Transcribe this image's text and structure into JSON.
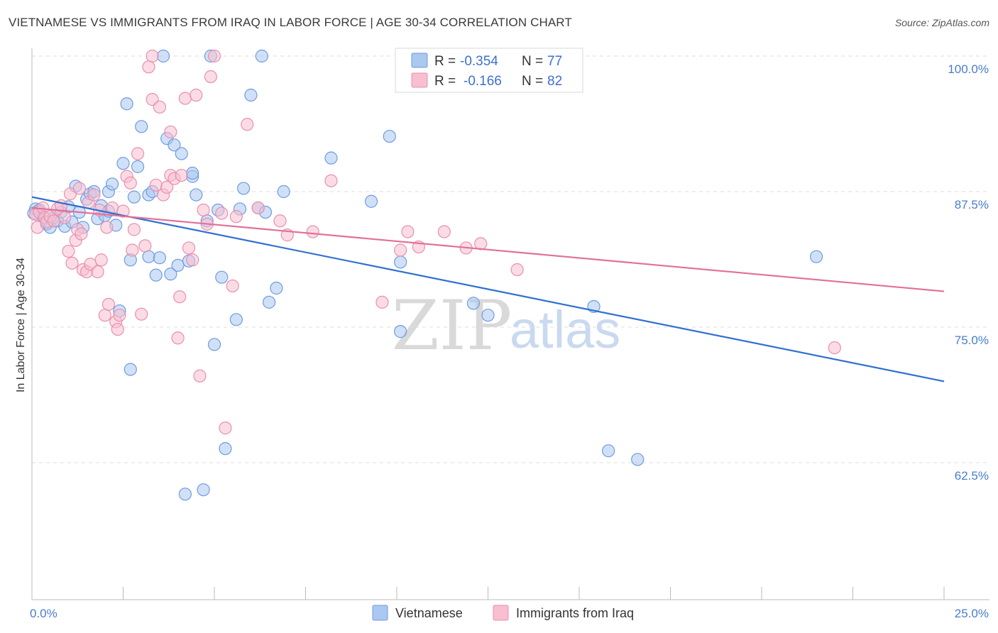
{
  "title": "VIETNAMESE VS IMMIGRANTS FROM IRAQ IN LABOR FORCE | AGE 30-34 CORRELATION CHART",
  "source": "Source: ZipAtlas.com",
  "watermark": {
    "zip": "ZIP",
    "atlas": "atlas"
  },
  "colors": {
    "blue_fill": "#aac8f0",
    "blue_stroke": "#6f9be0",
    "blue_line": "#2f6fd0",
    "pink_fill": "#f7bfd0",
    "pink_stroke": "#ea8fae",
    "pink_line": "#e0709a",
    "grid": "#dddddd",
    "tick_text": "#4a7ccc"
  },
  "legend": {
    "rows": [
      {
        "r_label": "R =",
        "r_value": "-0.354",
        "n_label": "N =",
        "n_value": "77"
      },
      {
        "r_label": "R =",
        "r_value": "-0.166",
        "n_label": "N =",
        "n_value": "82"
      }
    ]
  },
  "chart_data": {
    "type": "scatter",
    "title": "VIETNAMESE VS IMMIGRANTS FROM IRAQ IN LABOR FORCE | AGE 30-34 CORRELATION CHART",
    "xlabel": "",
    "ylabel": "In Labor Force | Age 30-34",
    "xlim": [
      0,
      25
    ],
    "ylim": [
      50,
      102
    ],
    "x_tick_labels": [
      {
        "value": 0,
        "label": "0.0%"
      },
      {
        "value": 25,
        "label": "25.0%"
      }
    ],
    "y_tick_labels": [
      {
        "value": 100,
        "label": "100.0%"
      },
      {
        "value": 87.5,
        "label": "87.5%"
      },
      {
        "value": 75,
        "label": "75.0%"
      },
      {
        "value": 62.5,
        "label": "62.5%"
      }
    ],
    "series": [
      {
        "name": "Vietnamese",
        "R": -0.354,
        "N": 77,
        "trend": [
          [
            0,
            87.0
          ],
          [
            25,
            70.0
          ]
        ],
        "points": [
          [
            0.1,
            85.9
          ],
          [
            0.2,
            85.8
          ],
          [
            0.3,
            85.2
          ],
          [
            0.4,
            84.5
          ],
          [
            0.5,
            84.2
          ],
          [
            0.6,
            85.1
          ],
          [
            0.7,
            84.8
          ],
          [
            0.8,
            85.6
          ],
          [
            0.9,
            84.3
          ],
          [
            1.0,
            86.1
          ],
          [
            1.1,
            84.7
          ],
          [
            1.2,
            88.0
          ],
          [
            1.3,
            85.6
          ],
          [
            1.4,
            84.2
          ],
          [
            1.5,
            86.8
          ],
          [
            1.6,
            87.3
          ],
          [
            1.7,
            87.5
          ],
          [
            1.8,
            85.0
          ],
          [
            1.9,
            86.2
          ],
          [
            2.0,
            85.3
          ],
          [
            2.1,
            85.7
          ],
          [
            2.1,
            87.5
          ],
          [
            2.2,
            88.2
          ],
          [
            2.3,
            84.4
          ],
          [
            2.4,
            76.5
          ],
          [
            2.5,
            90.1
          ],
          [
            2.6,
            95.6
          ],
          [
            2.7,
            81.2
          ],
          [
            2.7,
            71.1
          ],
          [
            2.8,
            87.0
          ],
          [
            2.9,
            89.8
          ],
          [
            3.0,
            93.5
          ],
          [
            3.2,
            87.2
          ],
          [
            3.2,
            81.5
          ],
          [
            3.3,
            87.5
          ],
          [
            3.4,
            79.8
          ],
          [
            3.5,
            81.4
          ],
          [
            3.6,
            100.0
          ],
          [
            3.7,
            92.4
          ],
          [
            3.8,
            79.9
          ],
          [
            3.9,
            91.8
          ],
          [
            4.0,
            80.7
          ],
          [
            4.1,
            91.0
          ],
          [
            4.2,
            59.6
          ],
          [
            4.3,
            81.1
          ],
          [
            4.4,
            88.9
          ],
          [
            4.4,
            89.2
          ],
          [
            4.5,
            87.2
          ],
          [
            4.7,
            60.0
          ],
          [
            4.8,
            84.8
          ],
          [
            4.9,
            100.0
          ],
          [
            5.0,
            73.4
          ],
          [
            5.1,
            85.8
          ],
          [
            5.2,
            79.6
          ],
          [
            5.3,
            63.8
          ],
          [
            5.6,
            75.7
          ],
          [
            5.7,
            85.9
          ],
          [
            5.8,
            87.8
          ],
          [
            6.0,
            96.4
          ],
          [
            6.2,
            86.0
          ],
          [
            6.3,
            100.0
          ],
          [
            6.4,
            85.6
          ],
          [
            6.5,
            77.3
          ],
          [
            6.7,
            78.6
          ],
          [
            6.9,
            87.5
          ],
          [
            8.2,
            90.6
          ],
          [
            9.3,
            86.6
          ],
          [
            9.8,
            92.6
          ],
          [
            10.1,
            74.6
          ],
          [
            10.1,
            81.0
          ],
          [
            12.1,
            77.2
          ],
          [
            12.5,
            76.1
          ],
          [
            15.4,
            76.9
          ],
          [
            15.8,
            63.6
          ],
          [
            16.6,
            62.8
          ],
          [
            21.5,
            81.5
          ],
          [
            0.05,
            85.5
          ]
        ]
      },
      {
        "name": "Immigrants from Iraq",
        "R": -0.166,
        "N": 82,
        "trend": [
          [
            0,
            86.0
          ],
          [
            25,
            78.3
          ]
        ],
        "points": [
          [
            0.1,
            85.4
          ],
          [
            0.15,
            84.2
          ],
          [
            0.2,
            85.6
          ],
          [
            0.3,
            86.0
          ],
          [
            0.35,
            85.1
          ],
          [
            0.4,
            84.7
          ],
          [
            0.5,
            85.2
          ],
          [
            0.6,
            84.8
          ],
          [
            0.7,
            85.9
          ],
          [
            0.8,
            86.2
          ],
          [
            0.9,
            85.1
          ],
          [
            1.0,
            82.0
          ],
          [
            1.05,
            87.3
          ],
          [
            1.1,
            80.9
          ],
          [
            1.2,
            83.0
          ],
          [
            1.25,
            84.0
          ],
          [
            1.3,
            87.8
          ],
          [
            1.35,
            83.6
          ],
          [
            1.4,
            80.3
          ],
          [
            1.5,
            80.1
          ],
          [
            1.55,
            86.5
          ],
          [
            1.6,
            80.8
          ],
          [
            1.7,
            87.2
          ],
          [
            1.8,
            80.1
          ],
          [
            1.85,
            85.8
          ],
          [
            1.9,
            81.2
          ],
          [
            2.0,
            76.1
          ],
          [
            2.05,
            84.2
          ],
          [
            2.1,
            77.1
          ],
          [
            2.2,
            86.0
          ],
          [
            2.3,
            75.5
          ],
          [
            2.35,
            74.8
          ],
          [
            2.4,
            76.1
          ],
          [
            2.5,
            85.7
          ],
          [
            2.6,
            88.9
          ],
          [
            2.7,
            88.3
          ],
          [
            2.75,
            82.1
          ],
          [
            2.8,
            84.0
          ],
          [
            2.9,
            91.0
          ],
          [
            3.0,
            76.2
          ],
          [
            3.1,
            82.5
          ],
          [
            3.2,
            99.0
          ],
          [
            3.3,
            100.0
          ],
          [
            3.3,
            96.0
          ],
          [
            3.4,
            88.1
          ],
          [
            3.5,
            95.3
          ],
          [
            3.6,
            87.2
          ],
          [
            3.7,
            87.9
          ],
          [
            3.8,
            93.0
          ],
          [
            3.8,
            89.0
          ],
          [
            3.9,
            88.7
          ],
          [
            4.0,
            74.0
          ],
          [
            4.05,
            77.8
          ],
          [
            4.1,
            89.0
          ],
          [
            4.2,
            96.1
          ],
          [
            4.3,
            82.3
          ],
          [
            4.4,
            81.2
          ],
          [
            4.5,
            96.4
          ],
          [
            4.6,
            70.5
          ],
          [
            4.7,
            85.8
          ],
          [
            4.8,
            84.5
          ],
          [
            4.9,
            98.1
          ],
          [
            5.0,
            100.0
          ],
          [
            5.2,
            85.5
          ],
          [
            5.3,
            65.7
          ],
          [
            5.5,
            78.8
          ],
          [
            5.6,
            85.2
          ],
          [
            5.9,
            93.7
          ],
          [
            6.2,
            86.0
          ],
          [
            6.8,
            84.8
          ],
          [
            7.0,
            83.5
          ],
          [
            7.7,
            83.8
          ],
          [
            8.2,
            88.5
          ],
          [
            9.6,
            77.3
          ],
          [
            10.1,
            82.1
          ],
          [
            10.3,
            83.8
          ],
          [
            10.6,
            82.4
          ],
          [
            11.3,
            83.8
          ],
          [
            11.9,
            82.3
          ],
          [
            12.3,
            82.7
          ],
          [
            13.3,
            80.3
          ],
          [
            22.0,
            73.1
          ]
        ]
      }
    ]
  }
}
